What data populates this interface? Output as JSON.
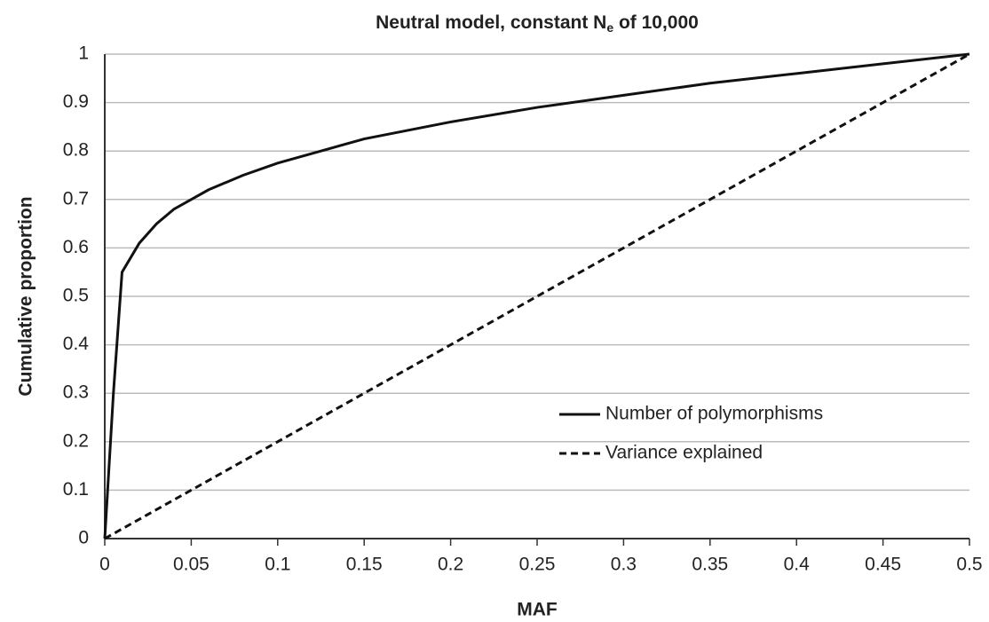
{
  "chart_data": {
    "type": "line",
    "title": [
      "Neutral model, constant N",
      "e",
      " of 10,000"
    ],
    "xlabel": "MAF",
    "ylabel": "Cumulative proportion",
    "xlim": [
      0,
      0.5
    ],
    "ylim": [
      0,
      1
    ],
    "xticks": [
      0,
      0.05,
      0.1,
      0.15,
      0.2,
      0.25,
      0.3,
      0.35,
      0.4,
      0.45,
      0.5
    ],
    "yticks": [
      0,
      0.1,
      0.2,
      0.3,
      0.4,
      0.5,
      0.6,
      0.7,
      0.8,
      0.9,
      1
    ],
    "grid": true,
    "legend": "lower right",
    "series": [
      {
        "name": "Number of polymorphisms",
        "color": "#111111",
        "dash": "solid",
        "x": [
          0,
          0.002,
          0.005,
          0.01,
          0.015,
          0.02,
          0.03,
          0.04,
          0.05,
          0.06,
          0.08,
          0.1,
          0.125,
          0.15,
          0.2,
          0.25,
          0.3,
          0.35,
          0.4,
          0.45,
          0.5
        ],
        "values": [
          0,
          0.12,
          0.3,
          0.55,
          0.58,
          0.61,
          0.65,
          0.68,
          0.7,
          0.72,
          0.75,
          0.775,
          0.8,
          0.825,
          0.86,
          0.89,
          0.915,
          0.94,
          0.96,
          0.98,
          1
        ]
      },
      {
        "name": "Variance explained",
        "color": "#111111",
        "dash": "dashed",
        "x": [
          0,
          0.5
        ],
        "values": [
          0,
          1
        ]
      }
    ]
  }
}
